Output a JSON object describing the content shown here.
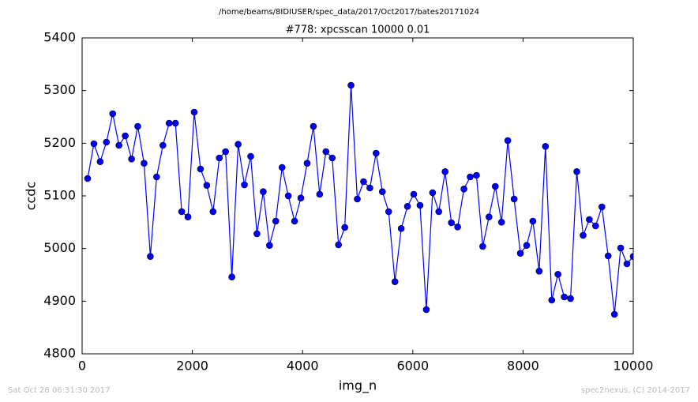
{
  "chart_data": {
    "type": "line",
    "suptitle": "/home/beams/8IDIUSER/spec_data/2017/Oct2017/bates20171024",
    "title": "#778: xpcsscan 10000 0.01",
    "x_label": "img_n",
    "y_label": "ccdc",
    "footer_left": "Sat Oct 28 06:31:30 2017",
    "footer_right": "spec2nexus, (C) 2014-2017",
    "x": [
      100,
      214,
      328,
      441,
      555,
      669,
      783,
      897,
      1010,
      1124,
      1238,
      1352,
      1466,
      1579,
      1693,
      1807,
      1921,
      2034,
      2148,
      2262,
      2376,
      2490,
      2603,
      2717,
      2831,
      2945,
      3059,
      3172,
      3286,
      3400,
      3514,
      3628,
      3741,
      3855,
      3969,
      4083,
      4197,
      4310,
      4424,
      4538,
      4652,
      4766,
      4879,
      4993,
      5107,
      5221,
      5334,
      5448,
      5562,
      5676,
      5790,
      5903,
      6017,
      6131,
      6245,
      6359,
      6472,
      6586,
      6700,
      6814,
      6928,
      7041,
      7155,
      7269,
      7383,
      7497,
      7610,
      7724,
      7838,
      7952,
      8066,
      8179,
      8293,
      8407,
      8521,
      8634,
      8748,
      8862,
      8976,
      9090,
      9203,
      9317,
      9431,
      9545,
      9659,
      9772,
      9886,
      10000
    ],
    "series": [
      {
        "color": "#0000ff",
        "values": [
          5133,
          5199,
          5165,
          5202,
          5256,
          5196,
          5214,
          5170,
          5232,
          5162,
          4985,
          5136,
          5196,
          5238,
          5238,
          5070,
          5060,
          5259,
          5151,
          5120,
          5070,
          5172,
          5184,
          4946,
          5198,
          5121,
          5175,
          5028,
          5108,
          5006,
          5052,
          5154,
          5100,
          5052,
          5096,
          5162,
          5232,
          5103,
          5184,
          5172,
          5007,
          5040,
          5310,
          5094,
          5127,
          5115,
          5181,
          5108,
          5070,
          4937,
          5038,
          5080,
          5103,
          5082,
          4884,
          5106,
          5070,
          5146,
          5049,
          5041,
          5113,
          5136,
          5139,
          5004,
          5060,
          5118,
          5050,
          5205,
          5094,
          4991,
          5006,
          5052,
          4957,
          5194,
          4902,
          4951,
          4908,
          4905,
          5146,
          5025,
          5055,
          5043,
          5079,
          4986,
          4875,
          5001,
          4971,
          4985
        ]
      }
    ],
    "xlim": [
      0,
      10000
    ],
    "xticks": [
      0,
      2000,
      4000,
      6000,
      8000,
      10000
    ],
    "ylim": [
      4800,
      5400
    ],
    "yticks": [
      4800,
      4900,
      5000,
      5100,
      5200,
      5300,
      5400
    ]
  }
}
